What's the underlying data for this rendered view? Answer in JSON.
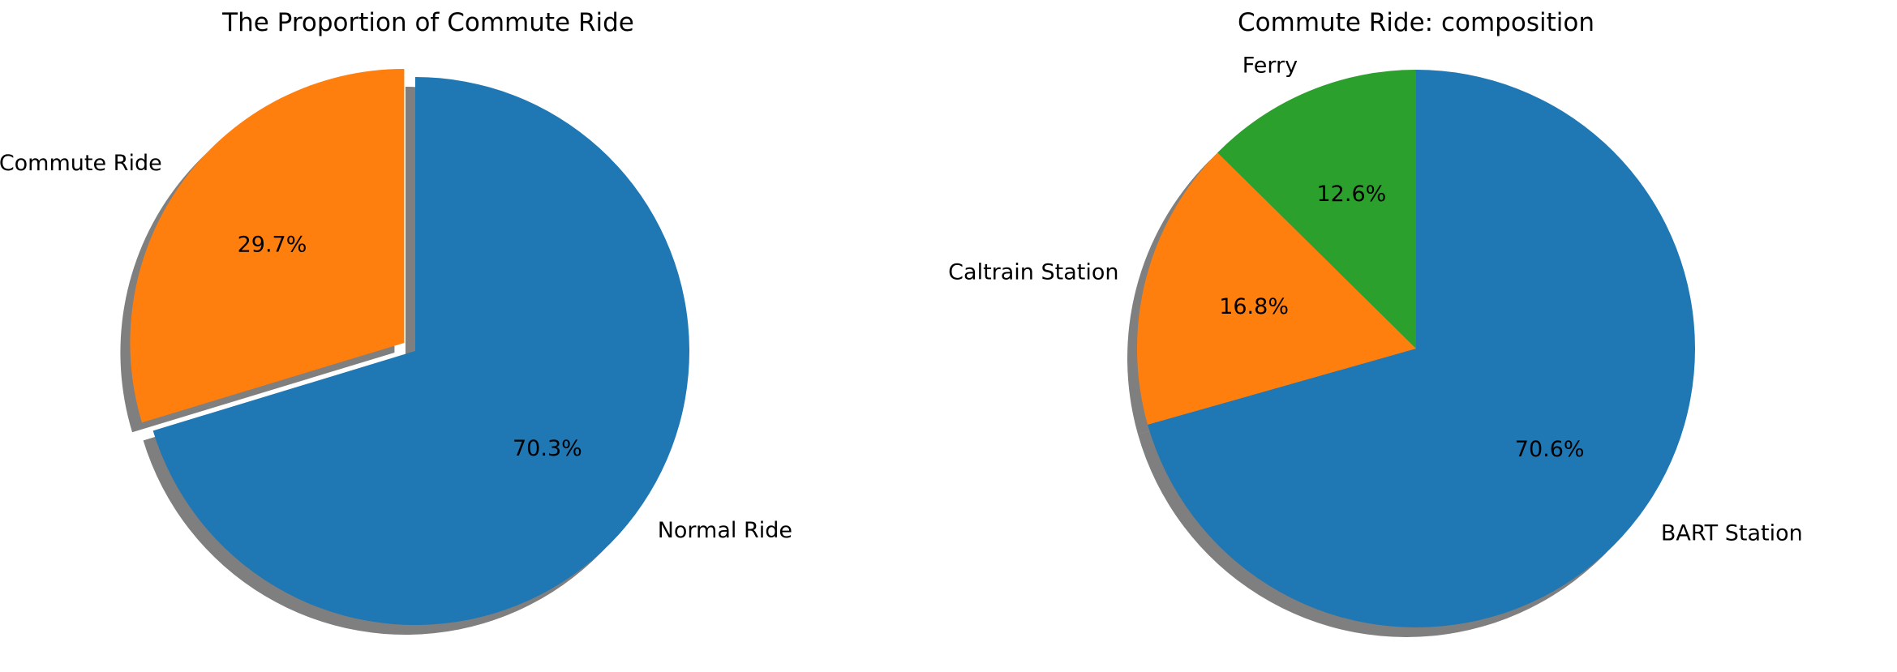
{
  "chart_data": [
    {
      "type": "pie",
      "title": "The Proportion of Commute Ride",
      "labels": [
        "Normal Ride",
        "Commute Ride"
      ],
      "values": [
        70.3,
        29.7
      ],
      "percent_labels": [
        "70.3%",
        "29.7%"
      ],
      "colors": [
        "#1f77b4",
        "#ff7f0e"
      ],
      "explode": [
        0,
        0.05
      ],
      "shadow": true,
      "start_angle_deg": 90,
      "direction": "clockwise"
    },
    {
      "type": "pie",
      "title": "Commute Ride: composition",
      "labels": [
        "BART Station",
        "Caltrain Station",
        "Ferry"
      ],
      "values": [
        70.6,
        16.8,
        12.6
      ],
      "percent_labels": [
        "70.6%",
        "16.8%",
        "12.6%"
      ],
      "colors": [
        "#1f77b4",
        "#ff7f0e",
        "#2ca02c"
      ],
      "explode": [
        0,
        0,
        0
      ],
      "shadow": true,
      "start_angle_deg": 90,
      "direction": "clockwise"
    }
  ]
}
